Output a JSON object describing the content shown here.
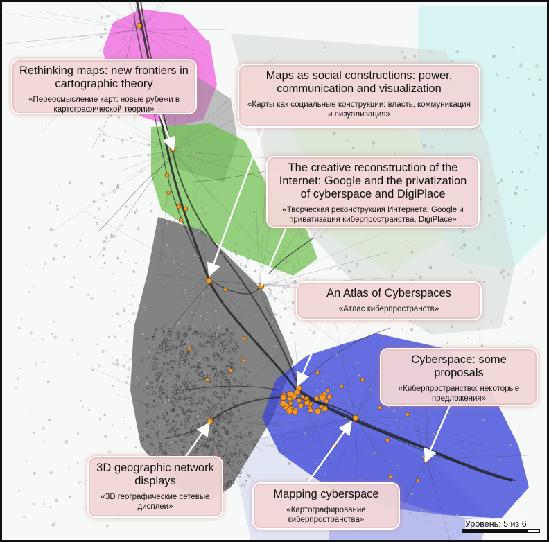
{
  "map": {
    "regions": [
      {
        "id": "pink",
        "color": "#f06ee0"
      },
      {
        "id": "green",
        "color": "#6dbf4f"
      },
      {
        "id": "gray",
        "color": "#6e6e6e"
      },
      {
        "id": "blue",
        "color": "#3c47d8"
      },
      {
        "id": "cyan",
        "color": "#bff2ef"
      }
    ],
    "node_color": "#f59a23",
    "edge_color": "#222222"
  },
  "callouts": {
    "rethinking": {
      "title": "Rethinking maps: new frontiers in cartographic theory",
      "subtitle": "«Переосмысление карт: новые рубежи в картографической теории»"
    },
    "social": {
      "title": "Maps as social constructions: power, communication and visualization",
      "subtitle": "«Карты как социальные конструкции: власть, коммуникация и визуализация»"
    },
    "creative": {
      "title": "The creative reconstruction of the Internet: Google and the privatization of cyberspace and DigiPlace",
      "subtitle": "«Творческая реконструкция Интернета: Google и приватизация киберпространства, DigiPlace»"
    },
    "atlas": {
      "title": "An Atlas of Cyberspaces",
      "subtitle": "«Атлас киберпространств»"
    },
    "cyberspace": {
      "title": "Cyberspace: some proposals",
      "subtitle": "«Киберпространство: некоторые предложения»"
    },
    "geo3d": {
      "title": "3D geographic network displays",
      "subtitle": "«3D географические сетевые дисплеи»"
    },
    "mapping": {
      "title": "Mapping cyberspace",
      "subtitle": "«Картографирование киберпространства»"
    }
  },
  "level": {
    "label": "Уровень: 5 из 6",
    "current": 5,
    "total": 6
  }
}
